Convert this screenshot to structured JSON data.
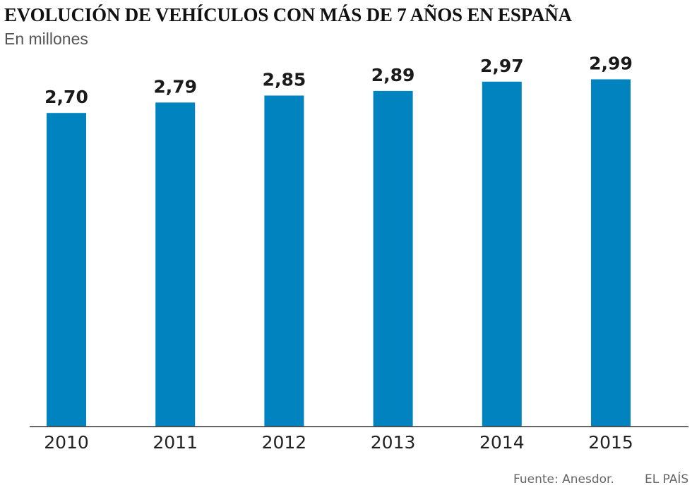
{
  "chart_data": {
    "type": "bar",
    "title": "EVOLUCIÓN DE VEHÍCULOS CON MÁS DE 7 AÑOS EN ESPAÑA",
    "subtitle": "En millones",
    "categories": [
      "2010",
      "2011",
      "2012",
      "2013",
      "2014",
      "2015"
    ],
    "values": [
      2.7,
      2.79,
      2.85,
      2.89,
      2.97,
      2.99
    ],
    "value_labels": [
      "2,70",
      "2,79",
      "2,85",
      "2,89",
      "2,97",
      "2,99"
    ],
    "xlabel": "",
    "ylabel": "",
    "ylim": [
      0,
      3.09
    ],
    "grid": false,
    "bar_color": "#0083bf"
  },
  "footer": {
    "source": "Fuente: Anesdor.",
    "publisher": "EL PAÍS"
  }
}
